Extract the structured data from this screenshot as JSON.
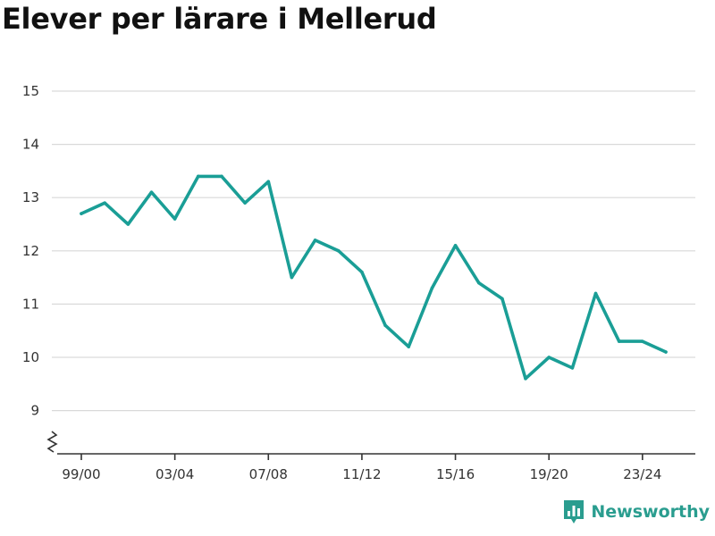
{
  "title": "Elever per lärare i Mellerud",
  "brand": {
    "name": "Newsworthy",
    "icon": "newsworthy-logo-icon",
    "color": "#2a9d8f"
  },
  "chart_data": {
    "type": "line",
    "title": "Elever per lärare i Mellerud",
    "xlabel": "",
    "ylabel": "",
    "x": [
      "99/00",
      "00/01",
      "01/02",
      "02/03",
      "03/04",
      "04/05",
      "05/06",
      "06/07",
      "07/08",
      "08/09",
      "09/10",
      "10/11",
      "11/12",
      "12/13",
      "13/14",
      "14/15",
      "15/16",
      "16/17",
      "17/18",
      "18/19",
      "19/20",
      "20/21",
      "21/22",
      "22/23",
      "23/24",
      "24/25"
    ],
    "x_tick_labels": [
      "99/00",
      "03/04",
      "07/08",
      "11/12",
      "15/16",
      "19/20",
      "23/24"
    ],
    "series": [
      {
        "color": "#1a9e96",
        "values": [
          12.7,
          12.9,
          12.5,
          13.1,
          12.6,
          13.4,
          13.4,
          12.9,
          13.3,
          11.5,
          12.2,
          12.0,
          11.6,
          10.6,
          10.2,
          11.3,
          12.1,
          11.4,
          11.1,
          9.6,
          10.0,
          9.8,
          11.2,
          10.3,
          10.3,
          10.1
        ]
      }
    ],
    "yticks": [
      9,
      10,
      11,
      12,
      13,
      14,
      15
    ],
    "ylim": [
      8.2,
      15
    ],
    "y_axis_break": true,
    "grid": true,
    "legend": "none"
  }
}
